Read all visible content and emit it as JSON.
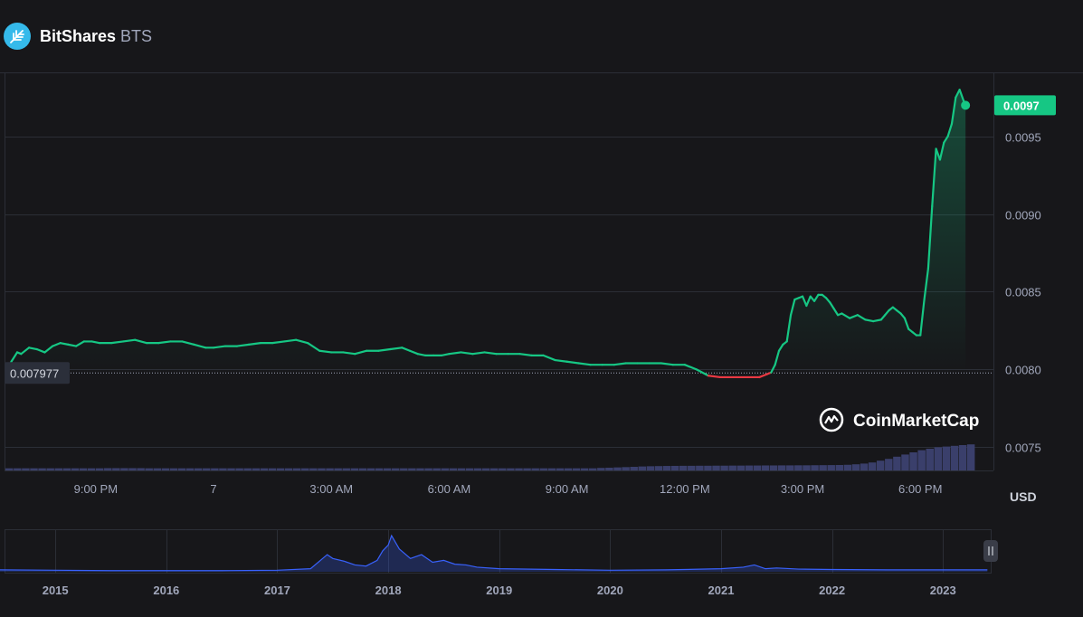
{
  "header": {
    "name": "BitShares",
    "symbol": "BTS",
    "logo_icon": "bitshares-logo-icon"
  },
  "watermark": {
    "text": "CoinMarketCap",
    "icon": "coinmarketcap-logo-icon"
  },
  "colors": {
    "background": "#17171a",
    "up": "#16c784",
    "down": "#ea3943",
    "volume": "#3a3f6b",
    "navigator_line": "#3861fb",
    "label_bg_current": "#16c784",
    "label_bg_open": "#2b2f3a",
    "grid": "#2b2e36",
    "tick_text": "#a1a7bb"
  },
  "chart_data": [
    {
      "type": "line",
      "currency_label": "USD",
      "open_price": 0.007977,
      "open_price_label": "0.007977",
      "current_price": 0.0097,
      "current_price_label": "0.0097",
      "x_range_hours": [
        18.7,
        43.4
      ],
      "ylim": [
        0.00735,
        0.0099
      ],
      "y_ticks": [
        0.0075,
        0.008,
        0.0085,
        0.009,
        0.0095
      ],
      "y_tick_labels": [
        "0.0075",
        "0.0080",
        "0.0085",
        "0.0090",
        "0.0095"
      ],
      "x_ticks": [
        21,
        24,
        27,
        30,
        33,
        36,
        39,
        42
      ],
      "x_tick_labels": [
        "9:00 PM",
        "7",
        "3:00 AM",
        "6:00 AM",
        "9:00 AM",
        "12:00 PM",
        "3:00 PM",
        "6:00 PM"
      ],
      "grid": true,
      "x": [
        18.75,
        18.85,
        19.0,
        19.1,
        19.3,
        19.5,
        19.7,
        19.9,
        20.1,
        20.3,
        20.5,
        20.7,
        20.9,
        21.1,
        21.4,
        21.7,
        22.0,
        22.3,
        22.6,
        22.9,
        23.2,
        23.5,
        23.8,
        24.0,
        24.3,
        24.6,
        24.9,
        25.2,
        25.5,
        25.8,
        26.1,
        26.4,
        26.7,
        27.0,
        27.3,
        27.6,
        27.9,
        28.2,
        28.5,
        28.8,
        29.0,
        29.2,
        29.4,
        29.6,
        29.8,
        30.0,
        30.3,
        30.6,
        30.9,
        31.2,
        31.5,
        31.8,
        32.1,
        32.4,
        32.7,
        33.0,
        33.3,
        33.6,
        33.9,
        34.2,
        34.5,
        34.8,
        35.1,
        35.4,
        35.7,
        36.0,
        36.3,
        36.6,
        36.9,
        37.0,
        37.3,
        37.6,
        37.9,
        38.1,
        38.2,
        38.3,
        38.4,
        38.5,
        38.6,
        38.7,
        38.8,
        38.9,
        39.0,
        39.1,
        39.2,
        39.3,
        39.4,
        39.5,
        39.6,
        39.7,
        39.8,
        39.9,
        40.0,
        40.2,
        40.4,
        40.6,
        40.8,
        41.0,
        41.1,
        41.2,
        41.3,
        41.4,
        41.5,
        41.6,
        41.7,
        41.8,
        41.9,
        42.0,
        42.1,
        42.2,
        42.3,
        42.4,
        42.5,
        42.6,
        42.7,
        42.8,
        42.9,
        43.0,
        43.1,
        43.15
      ],
      "y": [
        0.007977,
        0.00805,
        0.00811,
        0.0081,
        0.00814,
        0.00813,
        0.00811,
        0.00815,
        0.00817,
        0.00816,
        0.00815,
        0.00818,
        0.00818,
        0.00817,
        0.00817,
        0.00818,
        0.00819,
        0.00817,
        0.00817,
        0.00818,
        0.00818,
        0.00816,
        0.00814,
        0.00814,
        0.00815,
        0.00815,
        0.00816,
        0.00817,
        0.00817,
        0.00818,
        0.00819,
        0.00817,
        0.00812,
        0.00811,
        0.00811,
        0.0081,
        0.00812,
        0.00812,
        0.00813,
        0.00814,
        0.00812,
        0.0081,
        0.00809,
        0.00809,
        0.00809,
        0.0081,
        0.00811,
        0.0081,
        0.00811,
        0.0081,
        0.0081,
        0.0081,
        0.00809,
        0.00809,
        0.00806,
        0.00805,
        0.00804,
        0.00803,
        0.00803,
        0.00803,
        0.00804,
        0.00804,
        0.00804,
        0.00804,
        0.00803,
        0.00803,
        0.008,
        0.00796,
        0.00795,
        0.00795,
        0.00795,
        0.00795,
        0.00795,
        0.00797,
        0.00798,
        0.00803,
        0.00812,
        0.00816,
        0.00818,
        0.00835,
        0.00845,
        0.00846,
        0.00847,
        0.00841,
        0.00847,
        0.00844,
        0.00848,
        0.00848,
        0.00846,
        0.00843,
        0.00839,
        0.00835,
        0.00836,
        0.00833,
        0.00835,
        0.00832,
        0.00831,
        0.00832,
        0.00835,
        0.00838,
        0.0084,
        0.00838,
        0.00836,
        0.00833,
        0.00826,
        0.00824,
        0.00822,
        0.00822,
        0.00845,
        0.00865,
        0.00905,
        0.00942,
        0.00935,
        0.00946,
        0.0095,
        0.00958,
        0.00975,
        0.0098,
        0.00973,
        0.0097
      ],
      "volume_relative": [
        0.3,
        0.3,
        0.3,
        0.3,
        0.3,
        0.3,
        0.3,
        0.3,
        0.3,
        0.3,
        0.3,
        0.3,
        0.32,
        0.32,
        0.32,
        0.32,
        0.32,
        0.3,
        0.3,
        0.3,
        0.3,
        0.3,
        0.3,
        0.3,
        0.3,
        0.3,
        0.3,
        0.3,
        0.3,
        0.3,
        0.3,
        0.3,
        0.3,
        0.3,
        0.3,
        0.3,
        0.3,
        0.3,
        0.3,
        0.3,
        0.3,
        0.3,
        0.3,
        0.3,
        0.3,
        0.3,
        0.3,
        0.3,
        0.3,
        0.3,
        0.3,
        0.3,
        0.3,
        0.3,
        0.3,
        0.3,
        0.3,
        0.3,
        0.3,
        0.3,
        0.3,
        0.3,
        0.3,
        0.3,
        0.3,
        0.3,
        0.3,
        0.3,
        0.3,
        0.3,
        0.3,
        0.3,
        0.35,
        0.38,
        0.42,
        0.46,
        0.5,
        0.55,
        0.58,
        0.6,
        0.62,
        0.63,
        0.64,
        0.64,
        0.65,
        0.65,
        0.66,
        0.66,
        0.67,
        0.67,
        0.68,
        0.68,
        0.69,
        0.69,
        0.7,
        0.7,
        0.71,
        0.71,
        0.72,
        0.73,
        0.74,
        0.75,
        0.78,
        0.85,
        0.95,
        1.1,
        1.35,
        1.6,
        1.9,
        2.2,
        2.5,
        2.8,
        3.0,
        3.2,
        3.3,
        3.4,
        3.5,
        3.6
      ]
    },
    {
      "type": "area",
      "role": "navigator",
      "x": [
        2014.5,
        2015.0,
        2015.5,
        2016.0,
        2016.5,
        2017.0,
        2017.3,
        2017.45,
        2017.5,
        2017.6,
        2017.7,
        2017.8,
        2017.9,
        2017.95,
        2018.0,
        2018.03,
        2018.1,
        2018.2,
        2018.3,
        2018.4,
        2018.5,
        2018.6,
        2018.7,
        2018.8,
        2019.0,
        2019.5,
        2020.0,
        2020.5,
        2021.0,
        2021.2,
        2021.3,
        2021.4,
        2021.5,
        2021.7,
        2022.0,
        2022.5,
        2023.0,
        2023.4
      ],
      "values": [
        0.05,
        0.04,
        0.03,
        0.03,
        0.03,
        0.04,
        0.08,
        0.45,
        0.35,
        0.28,
        0.18,
        0.15,
        0.3,
        0.55,
        0.7,
        0.95,
        0.6,
        0.35,
        0.45,
        0.25,
        0.3,
        0.2,
        0.18,
        0.12,
        0.08,
        0.06,
        0.04,
        0.05,
        0.08,
        0.12,
        0.18,
        0.08,
        0.1,
        0.07,
        0.06,
        0.05,
        0.05,
        0.05
      ],
      "x_ticks": [
        2015,
        2016,
        2017,
        2018,
        2019,
        2020,
        2021,
        2022,
        2023
      ],
      "x_tick_labels": [
        "2015",
        "2016",
        "2017",
        "2018",
        "2019",
        "2020",
        "2021",
        "2022",
        "2023"
      ],
      "x_range": [
        2014.55,
        2023.43
      ]
    }
  ]
}
